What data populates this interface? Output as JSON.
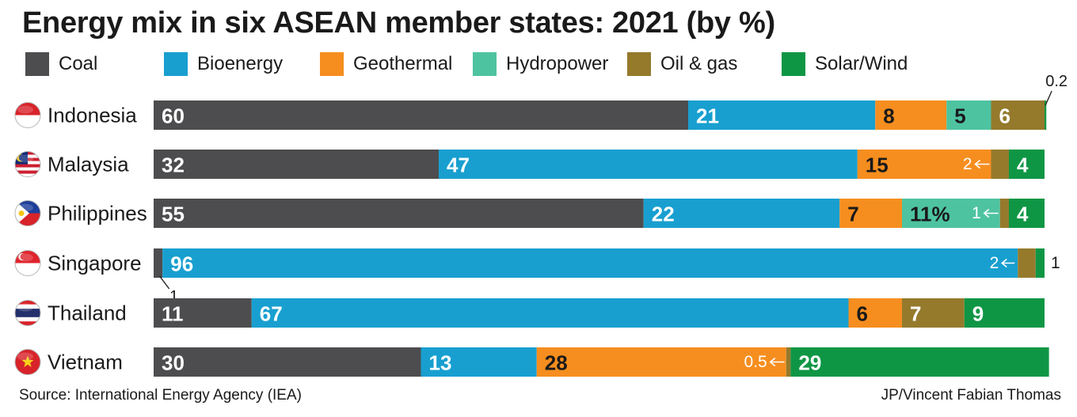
{
  "title": "Energy mix in six ASEAN member states: 2021 (by %)",
  "source": "Source: International Energy Agency (IEA)",
  "credit": "JP/Vincent Fabian Thomas",
  "chart_data": {
    "type": "bar",
    "orientation": "horizontal",
    "stacked": true,
    "title": "Energy mix in six ASEAN member states: 2021 (by %)",
    "legend_position": "top",
    "categories": [
      "Indonesia",
      "Malaysia",
      "Philippines",
      "Singapore",
      "Thailand",
      "Vietnam"
    ],
    "series": [
      {
        "name": "Coal",
        "color": "#4d4d4f",
        "values": [
          60,
          32,
          55,
          1,
          11,
          30
        ]
      },
      {
        "name": "Bioenergy",
        "color": "#189fd0",
        "values": [
          21,
          47,
          22,
          96,
          67,
          13
        ]
      },
      {
        "name": "Geothermal",
        "color": "#f68e1f",
        "values": [
          8,
          15,
          7,
          0,
          6,
          28
        ]
      },
      {
        "name": "Hydropower",
        "color": "#4ec3a0",
        "values": [
          5,
          0,
          11,
          0,
          0,
          0
        ]
      },
      {
        "name": "Oil & gas",
        "color": "#957a2c",
        "values": [
          6,
          2,
          1,
          2,
          7,
          0.5
        ]
      },
      {
        "name": "Solar/Wind",
        "color": "#0f9645",
        "values": [
          0.2,
          4,
          4,
          1,
          9,
          29
        ]
      }
    ],
    "data_labels": [
      [
        "60",
        "21",
        "8",
        "5",
        "6",
        "0.2"
      ],
      [
        "32",
        "47",
        "15",
        "",
        "2",
        "4"
      ],
      [
        "55",
        "22",
        "7",
        "11%",
        "1",
        "4"
      ],
      [
        "1",
        "96",
        "",
        "",
        "2",
        "1"
      ],
      [
        "11",
        "67",
        "6",
        "",
        "7",
        "9"
      ],
      [
        "30",
        "13",
        "28",
        "",
        "0.5",
        "29"
      ]
    ],
    "flags": [
      "flag-indonesia-icon",
      "flag-malaysia-icon",
      "flag-philippines-icon",
      "flag-singapore-icon",
      "flag-thailand-icon",
      "flag-vietnam-icon"
    ]
  }
}
